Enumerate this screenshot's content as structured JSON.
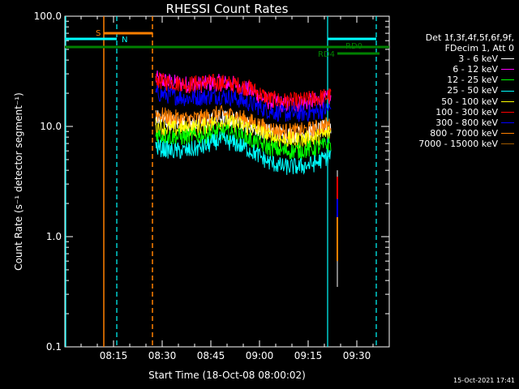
{
  "chart_data": {
    "type": "line",
    "title": "RHESSI Count Rates",
    "xlabel": "Start Time (18-Oct-08 08:00:02)",
    "ylabel": "Count Rate (s⁻¹ detector segment⁻¹)",
    "x_axis": {
      "ticks": [
        "08:15",
        "08:30",
        "08:45",
        "09:00",
        "09:15",
        "09:30"
      ],
      "range_minutes_from_start": [
        0,
        100
      ]
    },
    "y_axis": {
      "scale": "log",
      "ticks": [
        "0.1",
        "1.0",
        "10.0",
        "100.0"
      ],
      "range": [
        0.1,
        100
      ]
    },
    "legend_header": [
      "Det 1f,3f,4f,5f,6f,9f,",
      "FDecim 1, Att 0"
    ],
    "series": [
      {
        "name": "3 - 6 keV",
        "color": "#ffffff",
        "start": "08:28",
        "end": "09:22",
        "values": [
          12,
          11,
          10.5,
          10.8,
          12,
          11.5,
          10,
          9,
          8.5,
          8.5,
          9,
          10
        ]
      },
      {
        "name": "6 - 12 keV",
        "color": "#ff00ff",
        "start": "08:28",
        "end": "09:22",
        "values": [
          27,
          25,
          24,
          24,
          25,
          24,
          21,
          17,
          16,
          16,
          17,
          18
        ]
      },
      {
        "name": "12 - 25 keV",
        "color": "#00ff00",
        "start": "08:28",
        "end": "09:22",
        "values": [
          8.5,
          8,
          8,
          8.3,
          9,
          8.5,
          7.5,
          6.5,
          6,
          6,
          6.3,
          7
        ]
      },
      {
        "name": "25 - 50 keV",
        "color": "#00ffff",
        "start": "08:28",
        "end": "09:22",
        "values": [
          6.5,
          6,
          6,
          6.5,
          7.5,
          7,
          6,
          4.8,
          4.3,
          4.3,
          4.6,
          5.5
        ]
      },
      {
        "name": "50 - 100 keV",
        "color": "#ffff00",
        "start": "08:28",
        "end": "09:22",
        "values": [
          10,
          9.5,
          9.5,
          10,
          11,
          10.5,
          9.5,
          8.2,
          7.5,
          7.5,
          7.8,
          8.8
        ]
      },
      {
        "name": "100 - 300 keV",
        "color": "#ff0000",
        "start": "08:28",
        "end": "09:22",
        "values": [
          26,
          25,
          24,
          25,
          25,
          24,
          22,
          18,
          17,
          17,
          18,
          19
        ]
      },
      {
        "name": "300 - 800 keV",
        "color": "#0000ff",
        "start": "08:28",
        "end": "09:22",
        "values": [
          20,
          19,
          18,
          18.5,
          19,
          18,
          16,
          14,
          13,
          13,
          13.5,
          14.5
        ]
      },
      {
        "name": "800 - 7000 keV",
        "color": "#ff8000",
        "start": "08:28",
        "end": "09:22",
        "values": [
          13,
          12,
          11.5,
          12,
          13,
          12.5,
          11,
          9.5,
          9,
          9,
          9.5,
          10.5
        ]
      },
      {
        "name": "7000 - 15000 keV",
        "color": "#a05a00",
        "start": "08:28",
        "end": "09:22",
        "values": []
      }
    ],
    "annotations": [
      {
        "label": "S",
        "color": "#ff8000"
      },
      {
        "label": "N",
        "color": "#00ffff"
      },
      {
        "label": "RD0",
        "color": "#008000"
      },
      {
        "label": "RD4",
        "color": "#008000"
      }
    ],
    "timestamp": "15-Oct-2021 17:41"
  }
}
